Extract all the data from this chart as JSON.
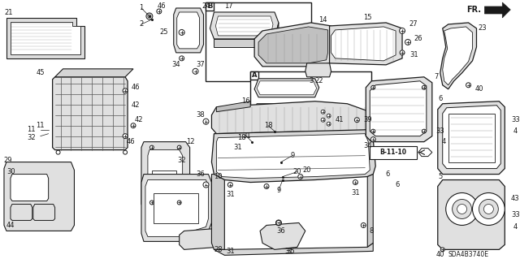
{
  "bg_color": "#ffffff",
  "line_color": "#1a1a1a",
  "gray_fill": "#c8c8c8",
  "light_gray": "#e0e0e0",
  "diagram_code": "SDA4B3740E",
  "fr_label": "FR.",
  "b_ref": "B-11-10",
  "figsize": [
    6.4,
    3.19
  ],
  "dpi": 100
}
